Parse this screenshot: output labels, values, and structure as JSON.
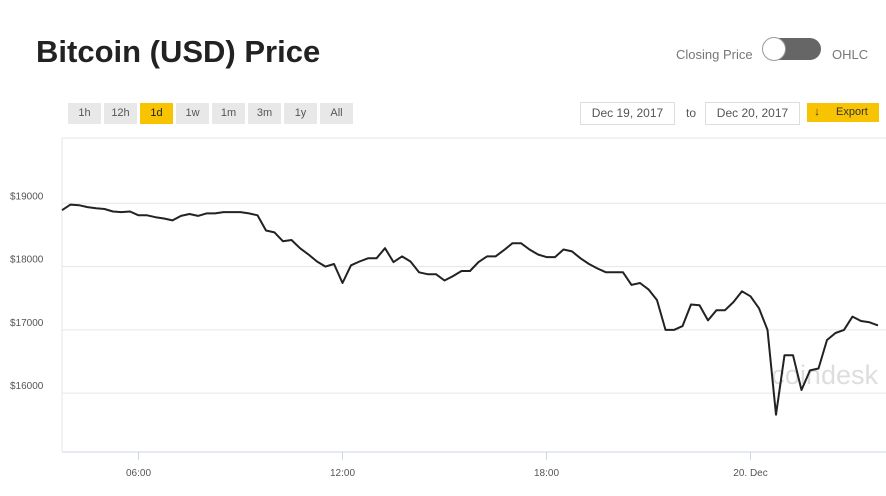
{
  "chart_data": {
    "type": "line",
    "title": "Bitcoin (USD) Price",
    "x": [
      3.75,
      4,
      4.25,
      4.5,
      4.75,
      5,
      5.25,
      5.5,
      5.75,
      6,
      6.25,
      6.5,
      6.75,
      7,
      7.25,
      7.5,
      7.75,
      8,
      8.25,
      8.5,
      8.75,
      9,
      9.25,
      9.5,
      9.75,
      10,
      10.25,
      10.5,
      10.75,
      11,
      11.25,
      11.5,
      11.75,
      12,
      12.25,
      12.5,
      12.75,
      13,
      13.25,
      13.5,
      13.75,
      14,
      14.25,
      14.5,
      14.75,
      15,
      15.25,
      15.5,
      15.75,
      16,
      16.25,
      16.5,
      16.75,
      17,
      17.25,
      17.5,
      17.75,
      18,
      18.25,
      18.5,
      18.75,
      19,
      19.25,
      19.5,
      19.75,
      20,
      20.25,
      20.5,
      20.75,
      21,
      21.25,
      21.5,
      21.75,
      22,
      22.25,
      22.5,
      22.75,
      23,
      23.25,
      23.5,
      23.75,
      24,
      24.25,
      24.5,
      24.75,
      25,
      25.25,
      25.5,
      25.75,
      26,
      26.25,
      26.5,
      26.75,
      27,
      27.25,
      27.5,
      27.75
    ],
    "values": [
      18890,
      18980,
      18970,
      18940,
      18920,
      18910,
      18870,
      18860,
      18870,
      18810,
      18810,
      18780,
      18760,
      18730,
      18800,
      18830,
      18800,
      18840,
      18840,
      18860,
      18860,
      18860,
      18840,
      18810,
      18570,
      18540,
      18400,
      18420,
      18290,
      18190,
      18080,
      18000,
      18040,
      17740,
      18020,
      18080,
      18130,
      18130,
      18290,
      18070,
      18160,
      18080,
      17910,
      17880,
      17880,
      17780,
      17850,
      17930,
      17930,
      18070,
      18160,
      18160,
      18260,
      18370,
      18370,
      18270,
      18190,
      18150,
      18150,
      18270,
      18240,
      18130,
      18040,
      17970,
      17910,
      17910,
      17910,
      17710,
      17740,
      17640,
      17470,
      17000,
      17000,
      17060,
      17400,
      17390,
      17150,
      17310,
      17310,
      17440,
      17610,
      17530,
      17340,
      17000,
      15660,
      16600,
      16600,
      16050,
      16360,
      16390,
      16840,
      16950,
      17000,
      17210,
      17140,
      17120,
      17070
    ],
    "color": "#222222",
    "xlim": [
      3.75,
      27.75
    ],
    "xticks": [
      {
        "value": 6,
        "label": "06:00"
      },
      {
        "value": 12,
        "label": "12:00"
      },
      {
        "value": 18,
        "label": "18:00"
      },
      {
        "value": 24,
        "label": "20. Dec"
      }
    ],
    "ylim": [
      15070,
      20000
    ],
    "yticks": [
      {
        "value": 16000,
        "label": "$16000"
      },
      {
        "value": 17000,
        "label": "$17000"
      },
      {
        "value": 18000,
        "label": "$18000"
      },
      {
        "value": 19000,
        "label": "$19000"
      }
    ],
    "grid": true,
    "watermark": "coindesk"
  },
  "controls": {
    "toggle_left": "Closing Price",
    "toggle_right": "OHLC",
    "ranges": [
      "1h",
      "12h",
      "1d",
      "1w",
      "1m",
      "3m",
      "1y",
      "All"
    ],
    "active_range": "1d",
    "date_from": "Dec 19, 2017",
    "date_sep": "to",
    "date_to": "Dec 20, 2017",
    "export": "Export"
  }
}
